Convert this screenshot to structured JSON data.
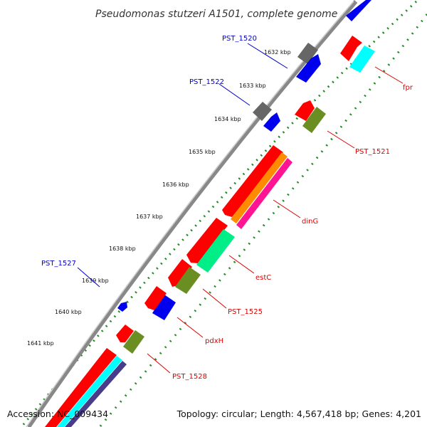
{
  "title": "Pseudomonas stutzeri A1501, complete genome",
  "footer": {
    "accession": "Accession: NC_009434",
    "topology": "Topology: circular; Length: 4,567,418 bp; Genes: 4,201"
  },
  "scale_labels": [
    "1632 kbp",
    "1633 kbp",
    "1634 kbp",
    "1635 kbp",
    "1636 kbp",
    "1637 kbp",
    "1638 kbp",
    "1639 kbp",
    "1640 kbp",
    "1641 kbp"
  ],
  "gene_labels": {
    "reverse": [
      "PST_1520",
      "PST_1522",
      "PST_1527"
    ],
    "forward": [
      "fpr",
      "PST_1521",
      "dinG",
      "estC",
      "PST_1525",
      "pdxH",
      "PST_1528"
    ]
  },
  "colors": {
    "backbone": "#888888",
    "cds": "#ff0000",
    "cds_reverse": "#0000ee",
    "reverse_label": "#0000cc",
    "forward_label": "#dd0000",
    "gray_block": "#666666",
    "olive": "#6b8e23",
    "cyan": "#00ffff",
    "orange": "#ff8c00",
    "magenta": "#ff1493",
    "spring_green": "#00ee88",
    "navy": "#483d8b",
    "green_dots": "#228b22"
  }
}
